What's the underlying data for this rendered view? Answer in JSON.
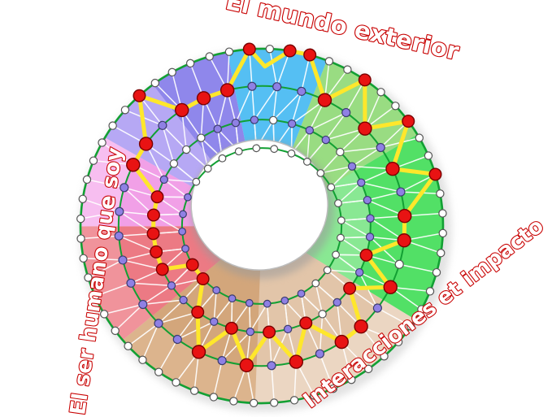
{
  "labels": {
    "top": "El mundo exterior",
    "left": "El ser humano que soy",
    "bottom_right": "Interacciones et impacto"
  },
  "label_style": {
    "fill": "#FFFFFF",
    "stroke": "#C90505"
  },
  "palette": {
    "ring_stroke": "#12A033",
    "mesh_line": "#FFFFFF",
    "path_yellow": "#FFE72B",
    "node_red": "#E81313",
    "node_red_stroke": "#7A0000",
    "node_purple": "#8F80E4",
    "node_purple_stroke": "#3C3C6E",
    "node_white": "#FFFFFF",
    "node_white_stroke": "#555555",
    "hole_fill": "#FFFFFF",
    "hole_rim": "#BDBDBD",
    "shadow": "#BFBFBF"
  },
  "sectors": [
    {
      "name": "purple-dark",
      "a1": 327,
      "a2": 353,
      "color": "#8F87EB"
    },
    {
      "name": "blue",
      "a1": 353,
      "a2": 385,
      "color": "#55BFF3"
    },
    {
      "name": "green-light",
      "a1": 25,
      "a2": 63,
      "color": "#99DC82"
    },
    {
      "name": "green",
      "a1": 63,
      "a2": 126,
      "color": "#52E066",
      "band_color": "#89E893"
    },
    {
      "name": "tan-light",
      "a1": 126,
      "a2": 186,
      "color": "#EBD6C2",
      "inner_color": "#E2C5A9"
    },
    {
      "name": "tan-dark",
      "a1": 186,
      "a2": 234,
      "color": "#DCB48D",
      "inner_color": "#D3A67B"
    },
    {
      "name": "red",
      "a1": 234,
      "a2": 274,
      "color": "#F0939B",
      "inner_color": "#EC7A84"
    },
    {
      "name": "pink",
      "a1": 274,
      "a2": 304,
      "color": "#F7BEF0",
      "inner_color": "#F1A0E7"
    },
    {
      "name": "purple-light",
      "a1": 304,
      "a2": 327,
      "color": "#B6A8F4"
    }
  ],
  "rings": {
    "fractions": [
      1.0,
      0.79,
      0.6,
      0.44
    ],
    "counts": {
      "outer": 56,
      "ring2": 36,
      "ring3": 36,
      "inner": 28
    }
  },
  "level_fractions": {
    "1": 1.0,
    "2": 0.79,
    "3": 0.6,
    "4": 0.44
  },
  "spokes": [
    {
      "t": 0,
      "l": 1
    },
    {
      "t": 5,
      "r": 0.9,
      "marker": false
    },
    {
      "t": 10,
      "l": 1
    },
    {
      "t": 20,
      "l": 1
    },
    {
      "t": 30,
      "l": 2
    },
    {
      "t": 40,
      "l": 1
    },
    {
      "t": 50,
      "l": 2
    },
    {
      "t": 60,
      "l": 1
    },
    {
      "t": 70,
      "l": 2
    },
    {
      "t": 80,
      "l": 1
    },
    {
      "t": 90,
      "l": 2
    },
    {
      "t": 100,
      "l": 2
    },
    {
      "t": 110,
      "l": 3
    },
    {
      "t": 120,
      "l": 2
    },
    {
      "t": 130,
      "l": 3
    },
    {
      "t": 140,
      "l": 2
    },
    {
      "t": 150,
      "l": 2
    },
    {
      "t": 160,
      "l": 3
    },
    {
      "t": 170,
      "l": 2
    },
    {
      "t": 180,
      "l": 3
    },
    {
      "t": 190,
      "l": 2
    },
    {
      "t": 200,
      "l": 3
    },
    {
      "t": 210,
      "l": 2
    },
    {
      "t": 220,
      "l": 3
    },
    {
      "t": 230,
      "l": 4
    },
    {
      "t": 240,
      "l": 4
    },
    {
      "t": 250,
      "l": 3
    },
    {
      "t": 260,
      "l": 3
    },
    {
      "t": 270,
      "l": 3
    },
    {
      "t": 280,
      "l": 3
    },
    {
      "t": 290,
      "l": 3
    },
    {
      "t": 300,
      "l": 2
    },
    {
      "t": 310,
      "l": 2
    },
    {
      "t": 320,
      "l": 1
    },
    {
      "t": 330,
      "l": 2
    },
    {
      "t": 340,
      "l": 2
    },
    {
      "t": 350,
      "l": 2
    }
  ],
  "node_overrides": {
    "ring2_white": [
      11,
      21
    ],
    "ring3_white": [
      1,
      5,
      15,
      31,
      32,
      33
    ],
    "inner_purple": [
      12,
      13,
      14,
      15,
      16,
      17,
      18,
      19,
      20,
      21,
      22,
      23
    ]
  }
}
